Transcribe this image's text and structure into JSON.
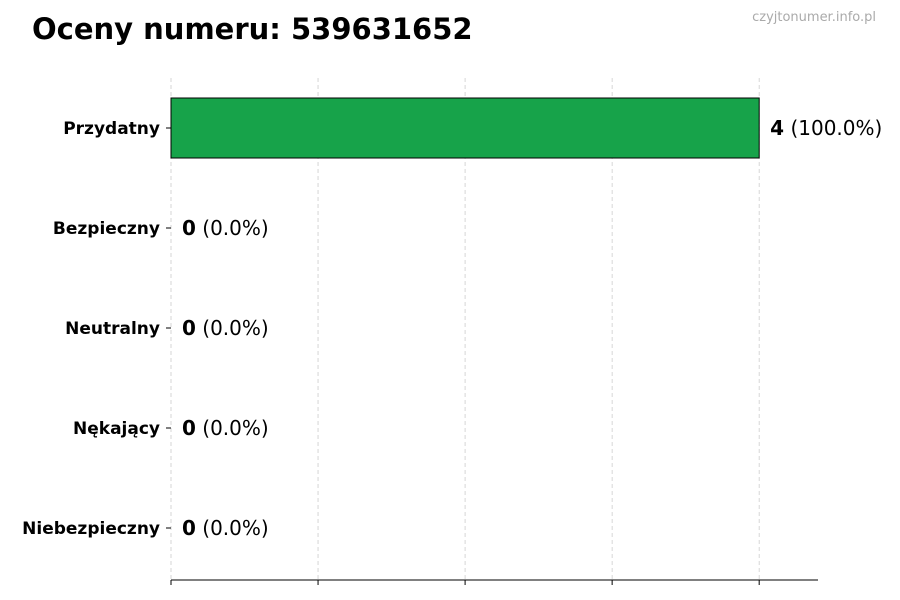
{
  "title": "Oceny numeru: 539631652",
  "watermark": "czyjtonumer.info.pl",
  "chart_data": {
    "type": "bar",
    "orientation": "horizontal",
    "title": "Oceny numeru: 539631652",
    "xlabel": "",
    "ylabel": "",
    "categories": [
      "Przydatny",
      "Bezpieczny",
      "Neutralny",
      "Nękający",
      "Niebezpieczny"
    ],
    "values": [
      4,
      0,
      0,
      0,
      0
    ],
    "percent_labels": [
      "(100.0%)",
      "(0.0%)",
      "(0.0%)",
      "(0.0%)",
      "(0.0%)"
    ],
    "colors": [
      "#17a34a",
      "#17a34a",
      "#17a34a",
      "#17a34a",
      "#17a34a"
    ],
    "xlim": [
      0,
      4.4
    ],
    "xticks": [
      0,
      1,
      2,
      3,
      4
    ],
    "grid": "x-dashed",
    "legend": "none"
  }
}
